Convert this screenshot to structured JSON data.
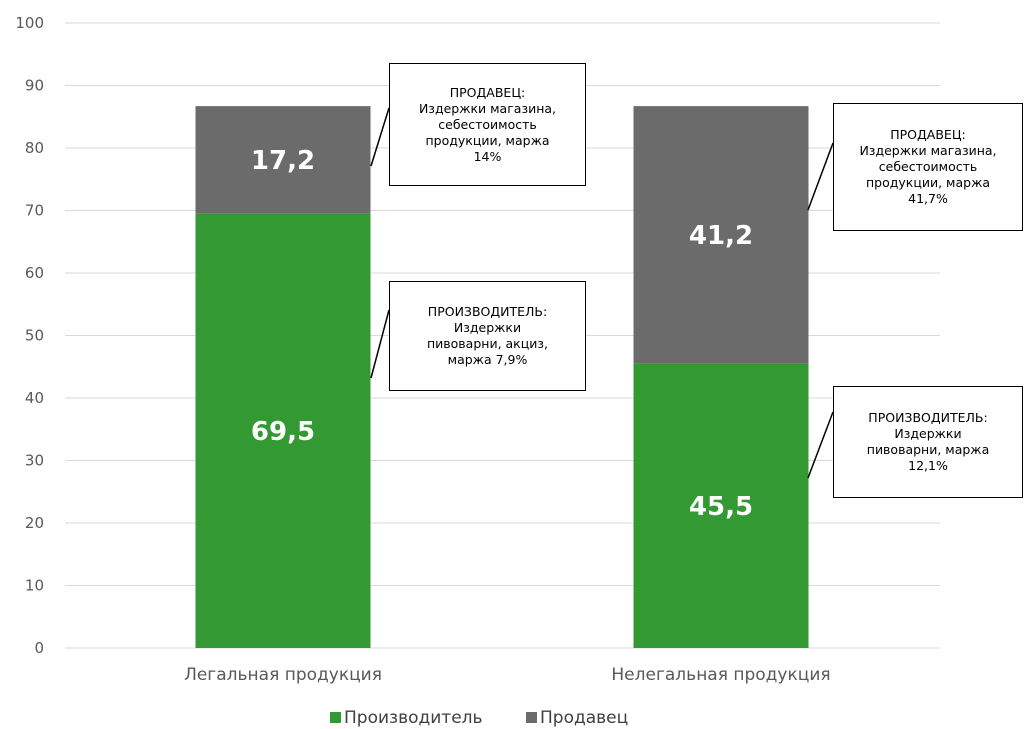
{
  "chart_data": {
    "type": "bar",
    "stacked": true,
    "categories": [
      "Легальная продукция",
      "Нелегальная продукция"
    ],
    "series": [
      {
        "name": "Производитель",
        "values": [
          69.5,
          45.5
        ],
        "labels": [
          "69,5",
          "45,5"
        ],
        "color": "#339933"
      },
      {
        "name": "Продавец",
        "values": [
          17.2,
          41.2
        ],
        "labels": [
          "17,2",
          "41,2"
        ],
        "color": "#6b6b6b"
      }
    ],
    "ylim": [
      0,
      100
    ],
    "yticks": [
      0,
      10,
      20,
      30,
      40,
      50,
      60,
      70,
      80,
      90,
      100
    ],
    "grid": true,
    "legend_position": "bottom",
    "annotations": [
      {
        "lines": [
          "ПРОДАВЕЦ:",
          "Издержки магазина,",
          "себестоимость",
          "продукции, маржа",
          "14%"
        ]
      },
      {
        "lines": [
          "ПРОИЗВОДИТЕЛЬ:",
          "Издержки",
          "пивоварни, акциз,",
          "маржа 7,9%"
        ]
      },
      {
        "lines": [
          "ПРОДАВЕЦ:",
          "Издержки магазина,",
          "себестоимость",
          "продукции, маржа",
          "41,7%"
        ]
      },
      {
        "lines": [
          "ПРОИЗВОДИТЕЛЬ:",
          "Издержки",
          "пивоварни, маржа",
          "12,1%"
        ]
      }
    ]
  }
}
